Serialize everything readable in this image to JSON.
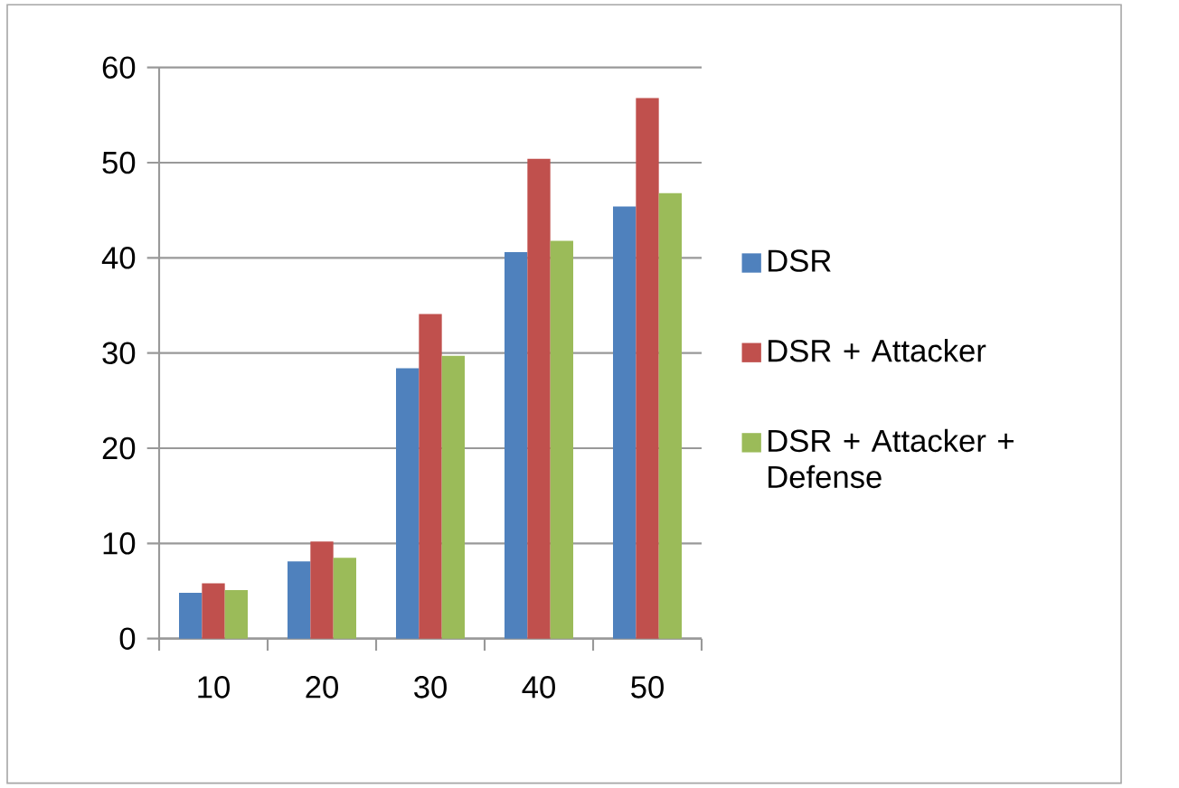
{
  "chart_data": {
    "type": "bar",
    "categories": [
      "10",
      "20",
      "30",
      "40",
      "50"
    ],
    "series": [
      {
        "name": "DSR",
        "color": "#4f81bd",
        "values": [
          4.8,
          8.1,
          28.4,
          40.6,
          45.4
        ]
      },
      {
        "name": "DSR + Attacker",
        "color": "#c0504d",
        "values": [
          5.8,
          10.2,
          34.1,
          50.4,
          56.8
        ]
      },
      {
        "name": "DSR + Attacker + Defense",
        "color": "#9bbb59",
        "values": [
          5.1,
          8.5,
          29.7,
          41.8,
          46.8
        ]
      }
    ],
    "ylim": [
      0,
      60
    ],
    "yticks": [
      0,
      10,
      20,
      30,
      40,
      50,
      60
    ],
    "grid": "y",
    "legend": "right"
  }
}
